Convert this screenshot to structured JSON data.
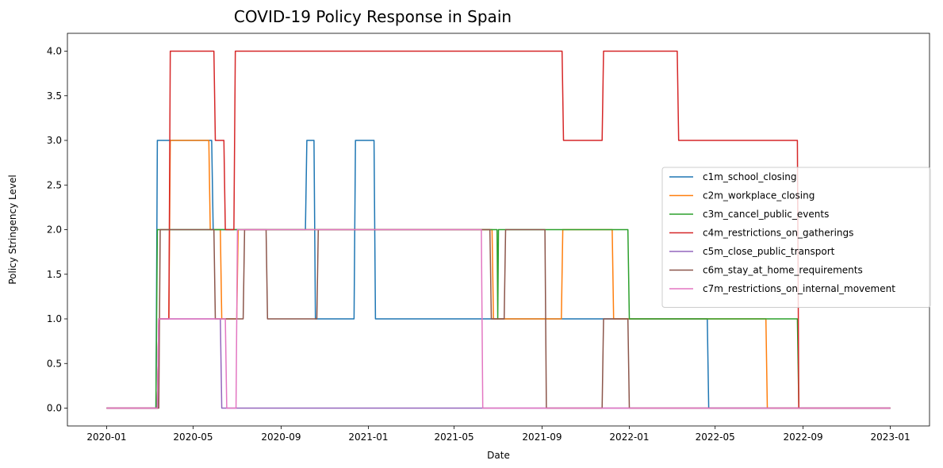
{
  "chart_data": {
    "type": "line",
    "title": "COVID-19 Policy Response in Spain",
    "xlabel": "Date",
    "ylabel": "Policy Stringency Level",
    "xlim": [
      "2020-01-01",
      "2023-01-01"
    ],
    "ylim": [
      -0.2,
      4.2
    ],
    "x_ticks": [
      "2020-01",
      "2020-05",
      "2020-09",
      "2021-01",
      "2021-05",
      "2021-09",
      "2022-01",
      "2022-05",
      "2022-09",
      "2023-01"
    ],
    "y_ticks": [
      "0.0",
      "0.5",
      "1.0",
      "1.5",
      "2.0",
      "2.5",
      "3.0",
      "3.5",
      "4.0"
    ],
    "grid": false,
    "legend_position": "center-right",
    "series": [
      {
        "name": "c1m_school_closing",
        "color": "#1f77b4",
        "points": [
          [
            "2020-01-01",
            0
          ],
          [
            "2020-03-10",
            0
          ],
          [
            "2020-03-12",
            3
          ],
          [
            "2020-05-27",
            3
          ],
          [
            "2020-05-29",
            2
          ],
          [
            "2020-10-05",
            2
          ],
          [
            "2020-10-07",
            3
          ],
          [
            "2020-10-17",
            3
          ],
          [
            "2020-10-19",
            1
          ],
          [
            "2020-12-12",
            1
          ],
          [
            "2020-12-14",
            3
          ],
          [
            "2021-01-09",
            3
          ],
          [
            "2021-01-11",
            1
          ],
          [
            "2022-04-20",
            1
          ],
          [
            "2022-04-22",
            0
          ],
          [
            "2023-01-01",
            0
          ]
        ]
      },
      {
        "name": "c2m_workplace_closing",
        "color": "#ff7f0e",
        "points": [
          [
            "2020-01-01",
            0
          ],
          [
            "2020-03-12",
            0
          ],
          [
            "2020-03-14",
            1
          ],
          [
            "2020-03-28",
            1
          ],
          [
            "2020-03-30",
            3
          ],
          [
            "2020-05-23",
            3
          ],
          [
            "2020-05-25",
            2
          ],
          [
            "2020-06-08",
            2
          ],
          [
            "2020-06-10",
            1
          ],
          [
            "2020-07-01",
            1
          ],
          [
            "2020-07-03",
            2
          ],
          [
            "2021-06-23",
            2
          ],
          [
            "2021-06-25",
            1
          ],
          [
            "2021-09-28",
            1
          ],
          [
            "2021-09-30",
            2
          ],
          [
            "2021-12-08",
            2
          ],
          [
            "2021-12-10",
            1
          ],
          [
            "2022-07-11",
            1
          ],
          [
            "2022-07-13",
            0
          ],
          [
            "2023-01-01",
            0
          ]
        ]
      },
      {
        "name": "c3m_cancel_public_events",
        "color": "#2ca02c",
        "points": [
          [
            "2020-01-01",
            0
          ],
          [
            "2020-03-10",
            0
          ],
          [
            "2020-03-12",
            2
          ],
          [
            "2021-06-30",
            2
          ],
          [
            "2021-07-01",
            1
          ],
          [
            "2021-07-02",
            2
          ],
          [
            "2021-12-30",
            2
          ],
          [
            "2022-01-01",
            1
          ],
          [
            "2022-08-24",
            1
          ],
          [
            "2022-08-26",
            0
          ],
          [
            "2023-01-01",
            0
          ]
        ]
      },
      {
        "name": "c4m_restrictions_on_gatherings",
        "color": "#d62728",
        "points": [
          [
            "2020-01-01",
            0
          ],
          [
            "2020-03-12",
            0
          ],
          [
            "2020-03-14",
            1
          ],
          [
            "2020-03-28",
            1
          ],
          [
            "2020-03-30",
            4
          ],
          [
            "2020-05-30",
            4
          ],
          [
            "2020-06-01",
            3
          ],
          [
            "2020-06-13",
            3
          ],
          [
            "2020-06-15",
            2
          ],
          [
            "2020-06-27",
            2
          ],
          [
            "2020-06-29",
            4
          ],
          [
            "2021-09-29",
            4
          ],
          [
            "2021-10-01",
            3
          ],
          [
            "2021-11-24",
            3
          ],
          [
            "2021-11-26",
            4
          ],
          [
            "2022-03-09",
            4
          ],
          [
            "2022-03-11",
            3
          ],
          [
            "2022-08-24",
            3
          ],
          [
            "2022-08-26",
            0
          ],
          [
            "2023-01-01",
            0
          ]
        ]
      },
      {
        "name": "c5m_close_public_transport",
        "color": "#9467bd",
        "points": [
          [
            "2020-01-01",
            0
          ],
          [
            "2020-03-12",
            0
          ],
          [
            "2020-03-14",
            1
          ],
          [
            "2020-06-08",
            1
          ],
          [
            "2020-06-10",
            0
          ],
          [
            "2023-01-01",
            0
          ]
        ]
      },
      {
        "name": "c6m_stay_at_home_requirements",
        "color": "#8c564b",
        "points": [
          [
            "2020-01-01",
            0
          ],
          [
            "2020-03-14",
            0
          ],
          [
            "2020-03-16",
            2
          ],
          [
            "2020-05-30",
            2
          ],
          [
            "2020-06-01",
            1
          ],
          [
            "2020-07-10",
            1
          ],
          [
            "2020-07-12",
            2
          ],
          [
            "2020-08-11",
            2
          ],
          [
            "2020-08-13",
            1
          ],
          [
            "2020-10-21",
            1
          ],
          [
            "2020-10-23",
            2
          ],
          [
            "2021-06-20",
            2
          ],
          [
            "2021-06-22",
            1
          ],
          [
            "2021-07-10",
            1
          ],
          [
            "2021-07-12",
            2
          ],
          [
            "2021-09-05",
            2
          ],
          [
            "2021-09-07",
            0
          ],
          [
            "2021-11-24",
            0
          ],
          [
            "2021-11-26",
            1
          ],
          [
            "2021-12-30",
            1
          ],
          [
            "2022-01-01",
            0
          ],
          [
            "2023-01-01",
            0
          ]
        ]
      },
      {
        "name": "c7m_restrictions_on_internal_movement",
        "color": "#e377c2",
        "points": [
          [
            "2020-01-01",
            0
          ],
          [
            "2020-03-12",
            0
          ],
          [
            "2020-03-14",
            1
          ],
          [
            "2020-06-15",
            1
          ],
          [
            "2020-06-17",
            0
          ],
          [
            "2020-06-30",
            0
          ],
          [
            "2020-07-02",
            2
          ],
          [
            "2021-06-08",
            2
          ],
          [
            "2021-06-10",
            0
          ],
          [
            "2023-01-01",
            0
          ]
        ]
      }
    ]
  }
}
